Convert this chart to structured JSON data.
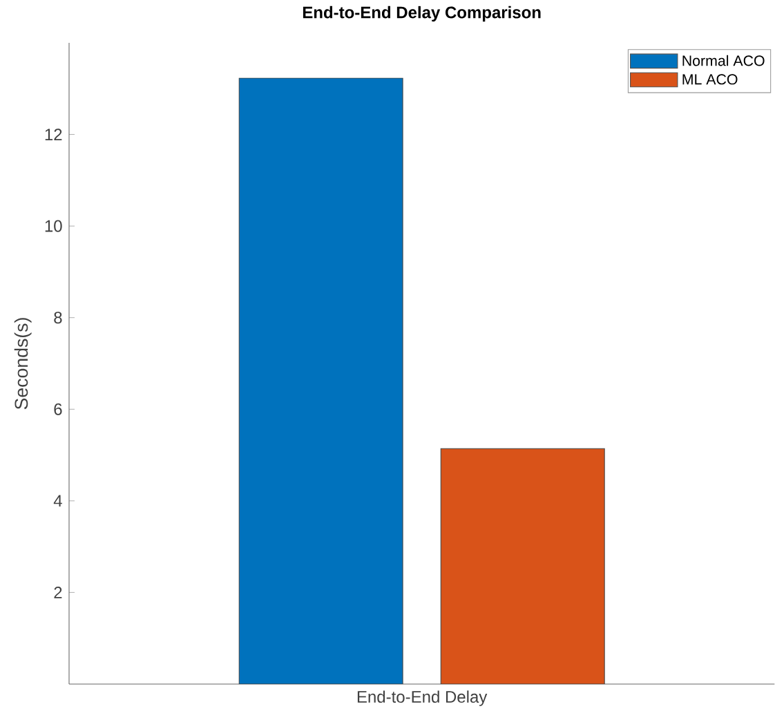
{
  "chart_data": {
    "type": "bar",
    "title": "End-to-End Delay Comparison",
    "ylabel": "Seconds(s)",
    "categories": [
      "End-to-End Delay"
    ],
    "series": [
      {
        "name": "Normal ACO",
        "color": "#0072bd",
        "values": [
          13.23
        ]
      },
      {
        "name": "ML ACO",
        "color": "#d95319",
        "values": [
          5.14
        ]
      }
    ],
    "ylim": [
      0,
      14
    ],
    "yticks": [
      2,
      4,
      6,
      8,
      10,
      12
    ],
    "legend": "top right",
    "grid": false
  }
}
